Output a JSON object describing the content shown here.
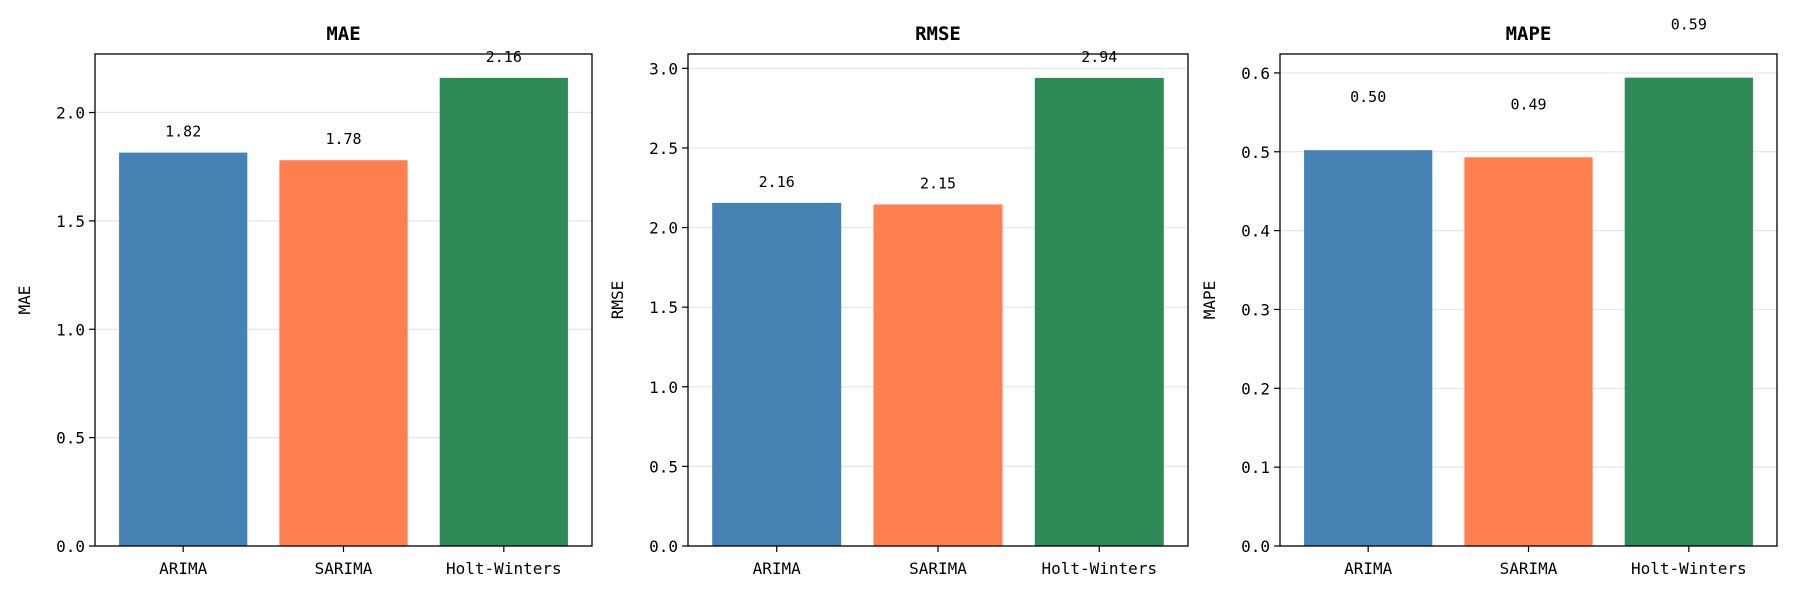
{
  "chart_data": [
    {
      "type": "bar",
      "title": "MAE",
      "ylabel": "MAE",
      "xlabel": "",
      "categories": [
        "ARIMA",
        "SARIMA",
        "Holt-Winters"
      ],
      "values": [
        1.815,
        1.78,
        2.16
      ],
      "value_labels": [
        "1.82",
        "1.78",
        "2.16"
      ],
      "colors": [
        "#4682b4",
        "#ff7f50",
        "#2e8b57"
      ],
      "ylim": [
        0,
        2.27
      ],
      "yticks": [
        0.0,
        0.5,
        1.0,
        1.5,
        2.0
      ],
      "ytick_labels": [
        "0.0",
        "0.5",
        "1.0",
        "1.5",
        "2.0"
      ],
      "grid": "y"
    },
    {
      "type": "bar",
      "title": "RMSE",
      "ylabel": "RMSE",
      "xlabel": "",
      "categories": [
        "ARIMA",
        "SARIMA",
        "Holt-Winters"
      ],
      "values": [
        2.155,
        2.145,
        2.94
      ],
      "value_labels": [
        "2.16",
        "2.15",
        "2.94"
      ],
      "colors": [
        "#4682b4",
        "#ff7f50",
        "#2e8b57"
      ],
      "ylim": [
        0,
        3.09
      ],
      "yticks": [
        0.0,
        0.5,
        1.0,
        1.5,
        2.0,
        2.5,
        3.0
      ],
      "ytick_labels": [
        "0.0",
        "0.5",
        "1.0",
        "1.5",
        "2.0",
        "2.5",
        "3.0"
      ],
      "grid": "y"
    },
    {
      "type": "bar",
      "title": "MAPE",
      "ylabel": "MAPE",
      "xlabel": "",
      "categories": [
        "ARIMA",
        "SARIMA",
        "Holt-Winters"
      ],
      "values": [
        0.502,
        0.493,
        0.594
      ],
      "value_labels": [
        "0.50",
        "0.49",
        "0.59"
      ],
      "colors": [
        "#4682b4",
        "#ff7f50",
        "#2e8b57"
      ],
      "ylim": [
        0,
        0.624
      ],
      "yticks": [
        0.0,
        0.1,
        0.2,
        0.3,
        0.4,
        0.5,
        0.6
      ],
      "ytick_labels": [
        "0.0",
        "0.1",
        "0.2",
        "0.3",
        "0.4",
        "0.5",
        "0.6"
      ],
      "grid": "y"
    }
  ]
}
